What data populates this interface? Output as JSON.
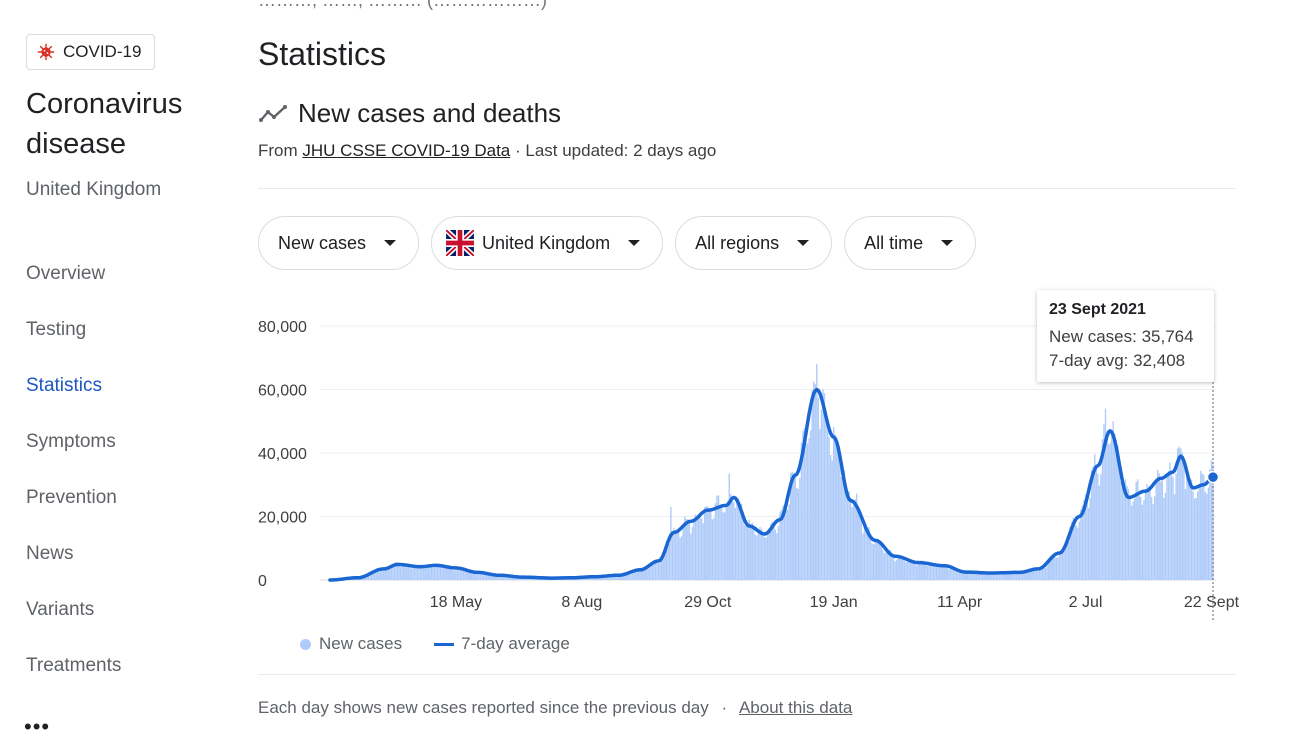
{
  "top_cut_text": "………, ……, ……… (………………)",
  "sidebar": {
    "chip_label": "COVID-19",
    "chip_icon": "virus-icon",
    "title": "Coronavirus disease",
    "location": "United Kingdom",
    "nav_items": [
      {
        "label": "Overview",
        "active": false
      },
      {
        "label": "Testing",
        "active": false
      },
      {
        "label": "Statistics",
        "active": true
      },
      {
        "label": "Symptoms",
        "active": false
      },
      {
        "label": "Prevention",
        "active": false
      },
      {
        "label": "News",
        "active": false
      },
      {
        "label": "Variants",
        "active": false
      },
      {
        "label": "Treatments",
        "active": false
      }
    ],
    "more_label": "•••"
  },
  "main": {
    "page_title": "Statistics",
    "section_title": "New cases and deaths",
    "source_prefix": "From",
    "source_link": "JHU CSSE COVID-19 Data",
    "last_updated": "· Last updated: 2 days ago",
    "filters": [
      {
        "label": "New cases",
        "flag": false
      },
      {
        "label": "United Kingdom",
        "flag": true
      },
      {
        "label": "All regions",
        "flag": false
      },
      {
        "label": "All time",
        "flag": false
      }
    ],
    "tooltip": {
      "date": "23 Sept 2021",
      "new_cases": "New cases: 35,764",
      "avg": "7-day avg: 32,408"
    },
    "legend": {
      "bars": "New cases",
      "line": "7-day average"
    },
    "footnote": "Each day shows new cases reported since the previous day",
    "footnote_sep": "·",
    "footnote_link": "About this data"
  },
  "colors": {
    "accent": "#1a66d2",
    "bar": "#aecbfa",
    "active_bg": "#e8f0fe",
    "active_text": "#1a57c2"
  },
  "chart_data": {
    "type": "bar",
    "y_ticks": [
      0,
      20000,
      40000,
      60000,
      80000
    ],
    "y_tick_labels": [
      "0",
      "20,000",
      "40,000",
      "60,000",
      "80,000"
    ],
    "ylim": [
      0,
      80000
    ],
    "x_ticks": [
      {
        "label": "18 May",
        "date": "2020-05-18"
      },
      {
        "label": "8 Aug",
        "date": "2020-08-08"
      },
      {
        "label": "29 Oct",
        "date": "2020-10-29"
      },
      {
        "label": "19 Jan",
        "date": "2021-01-19"
      },
      {
        "label": "11 Apr",
        "date": "2021-04-11"
      },
      {
        "label": "2 Jul",
        "date": "2021-07-02"
      },
      {
        "label": "22 Sept",
        "date": "2021-09-22"
      }
    ],
    "date_range": [
      "2020-02-26",
      "2021-09-23"
    ],
    "series": [
      {
        "name": "7-day average",
        "style": "line",
        "points": [
          [
            "2020-02-26",
            0
          ],
          [
            "2020-03-15",
            700
          ],
          [
            "2020-04-01",
            3500
          ],
          [
            "2020-04-10",
            4900
          ],
          [
            "2020-04-25",
            4200
          ],
          [
            "2020-05-05",
            4600
          ],
          [
            "2020-05-18",
            3800
          ],
          [
            "2020-06-01",
            2400
          ],
          [
            "2020-06-15",
            1500
          ],
          [
            "2020-07-01",
            900
          ],
          [
            "2020-07-20",
            600
          ],
          [
            "2020-08-01",
            700
          ],
          [
            "2020-08-15",
            1000
          ],
          [
            "2020-09-01",
            1500
          ],
          [
            "2020-09-15",
            3200
          ],
          [
            "2020-09-27",
            6000
          ],
          [
            "2020-10-07",
            15000
          ],
          [
            "2020-10-18",
            18500
          ],
          [
            "2020-10-29",
            22000
          ],
          [
            "2020-11-10",
            23500
          ],
          [
            "2020-11-15",
            26000
          ],
          [
            "2020-11-25",
            17000
          ],
          [
            "2020-12-05",
            14500
          ],
          [
            "2020-12-15",
            19000
          ],
          [
            "2020-12-25",
            33000
          ],
          [
            "2021-01-08",
            60000
          ],
          [
            "2021-01-19",
            45000
          ],
          [
            "2021-01-30",
            25000
          ],
          [
            "2021-02-15",
            12500
          ],
          [
            "2021-02-28",
            7500
          ],
          [
            "2021-03-15",
            5500
          ],
          [
            "2021-04-01",
            4500
          ],
          [
            "2021-04-15",
            2500
          ],
          [
            "2021-05-01",
            2200
          ],
          [
            "2021-05-20",
            2400
          ],
          [
            "2021-06-01",
            3500
          ],
          [
            "2021-06-15",
            8500
          ],
          [
            "2021-06-28",
            20000
          ],
          [
            "2021-07-10",
            36000
          ],
          [
            "2021-07-18",
            47000
          ],
          [
            "2021-07-30",
            26000
          ],
          [
            "2021-08-10",
            28000
          ],
          [
            "2021-08-20",
            32000
          ],
          [
            "2021-08-28",
            34000
          ],
          [
            "2021-09-02",
            39000
          ],
          [
            "2021-09-10",
            29000
          ],
          [
            "2021-09-17",
            30000
          ],
          [
            "2021-09-23",
            32408
          ]
        ]
      },
      {
        "name": "New cases",
        "style": "bars",
        "note": "daily bars around the average",
        "spikes": [
          [
            "2020-10-05",
            23000
          ],
          [
            "2020-11-12",
            33500
          ],
          [
            "2021-01-08",
            68000
          ],
          [
            "2021-07-15",
            54000
          ],
          [
            "2021-09-01",
            42000
          ]
        ]
      }
    ],
    "highlight": {
      "date": "2021-09-23",
      "new_cases": 35764,
      "avg": 32408
    }
  }
}
